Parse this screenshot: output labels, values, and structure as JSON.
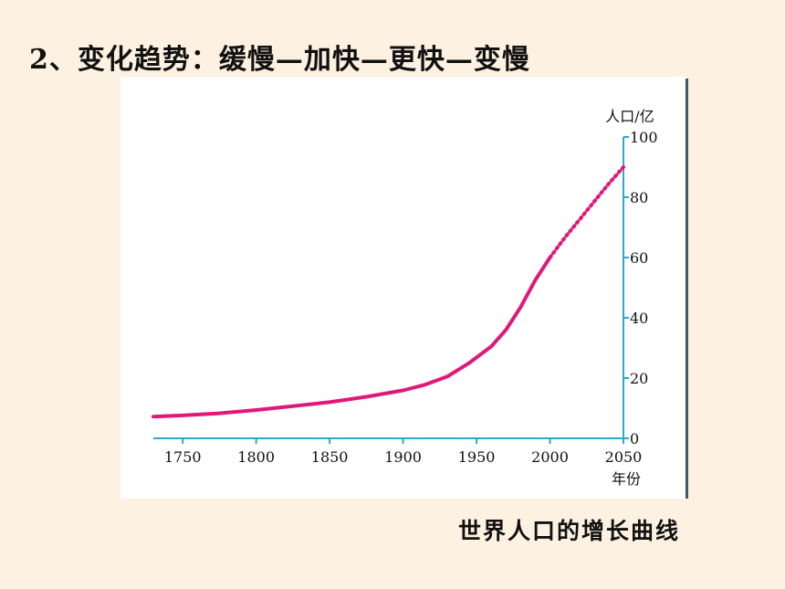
{
  "slide": {
    "heading": "2、变化趋势：缓慢—加快—更快—变慢",
    "caption": "世界人口的增长曲线"
  },
  "colors": {
    "background": "#fdf1e1",
    "axis": "#2aa9c9",
    "series": "#e0187a"
  },
  "chart_data": {
    "type": "line",
    "title": "",
    "xlabel": "年份",
    "ylabel": "人口/亿",
    "xlim": [
      1730,
      2050
    ],
    "ylim": [
      0,
      100
    ],
    "x_ticks": [
      1750,
      1800,
      1850,
      1900,
      1950,
      2000,
      2050
    ],
    "y_ticks": [
      0,
      20,
      40,
      60,
      80,
      100
    ],
    "grid": false,
    "series": [
      {
        "style": "solid",
        "x": [
          1730,
          1750,
          1775,
          1800,
          1825,
          1850,
          1875,
          1900,
          1915,
          1930,
          1945,
          1960,
          1970,
          1980,
          1990,
          2000
        ],
        "y": [
          7.2,
          7.6,
          8.3,
          9.4,
          10.7,
          12.0,
          13.8,
          15.9,
          17.8,
          20.5,
          25.0,
          30.5,
          36.0,
          43.5,
          52.5,
          60.0
        ]
      },
      {
        "style": "dotted",
        "x": [
          2000,
          2010,
          2020,
          2030,
          2040,
          2050
        ],
        "y": [
          60.0,
          66.5,
          72.5,
          78.5,
          84.5,
          90.0
        ]
      }
    ]
  }
}
